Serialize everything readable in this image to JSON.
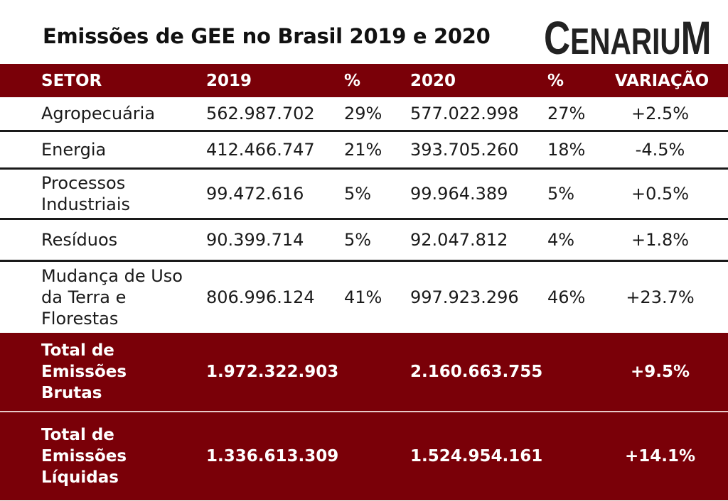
{
  "title": "Emissões de GEE no Brasil 2019 e 2020",
  "logo": {
    "c": "C",
    "enari": "ENARI",
    "u": "U",
    "m": "M"
  },
  "colors": {
    "header_bg": "#7a0008",
    "text": "#1a1a1a",
    "header_text": "#ffffff"
  },
  "chart_data": {
    "type": "table",
    "title": "Emissões de GEE no Brasil 2019 e 2020",
    "columns": [
      "SETOR",
      "2019",
      "%",
      "2020",
      "%",
      "VARIAÇÃO"
    ],
    "rows": [
      {
        "setor": "Agropecuária",
        "v2019": "562.987.702",
        "p2019": "29%",
        "v2020": "577.022.998",
        "p2020": "27%",
        "variacao": "+2.5%"
      },
      {
        "setor": "Energia",
        "v2019": "412.466.747",
        "p2019": "21%",
        "v2020": "393.705.260",
        "p2020": "18%",
        "variacao": "-4.5%"
      },
      {
        "setor": "Processos Industriais",
        "v2019": "99.472.616",
        "p2019": "5%",
        "v2020": "99.964.389",
        "p2020": "5%",
        "variacao": "+0.5%"
      },
      {
        "setor": "Resíduos",
        "v2019": "90.399.714",
        "p2019": "5%",
        "v2020": "92.047.812",
        "p2020": "4%",
        "variacao": "+1.8%"
      },
      {
        "setor": "Mudança de Uso da Terra e Florestas",
        "v2019": "806.996.124",
        "p2019": "41%",
        "v2020": "997.923.296",
        "p2020": "46%",
        "variacao": "+23.7%"
      }
    ],
    "totals": [
      {
        "setor": "Total de Emissões Brutas",
        "v2019": "1.972.322.903",
        "v2020": "2.160.663.755",
        "variacao": "+9.5%"
      },
      {
        "setor": "Total de Emissões Líquidas",
        "v2019": "1.336.613.309",
        "v2020": "1.524.954.161",
        "variacao": "+14.1%"
      }
    ]
  }
}
